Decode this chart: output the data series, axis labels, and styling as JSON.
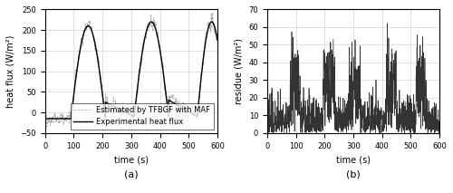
{
  "fig_width": 5.0,
  "fig_height": 2.13,
  "dpi": 100,
  "subplot_a": {
    "xlabel": "time (s)",
    "ylabel": "heat flux (W/m²)",
    "xlim": [
      0,
      600
    ],
    "ylim": [
      -50,
      250
    ],
    "yticks": [
      -50,
      0,
      50,
      100,
      150,
      200,
      250
    ],
    "xticks": [
      0,
      100,
      200,
      300,
      400,
      500,
      600
    ],
    "legend": [
      "Estimated by TFBGF with MAF",
      "Experimental heat flux"
    ],
    "grid": true
  },
  "subplot_b": {
    "xlabel": "time (s)",
    "ylabel": "residue (W/m²)",
    "xlim": [
      0,
      600
    ],
    "ylim": [
      0,
      70
    ],
    "yticks": [
      0,
      10,
      20,
      30,
      40,
      50,
      60,
      70
    ],
    "xticks": [
      0,
      100,
      200,
      300,
      400,
      500,
      600
    ],
    "grid": true
  },
  "label_a": "(a)",
  "label_b": "(b)",
  "line_color_estimated": "#aaaaaa",
  "line_color_experimental": "#000000",
  "residue_color": "#333333",
  "fontsize": 7,
  "legend_fontsize": 6
}
